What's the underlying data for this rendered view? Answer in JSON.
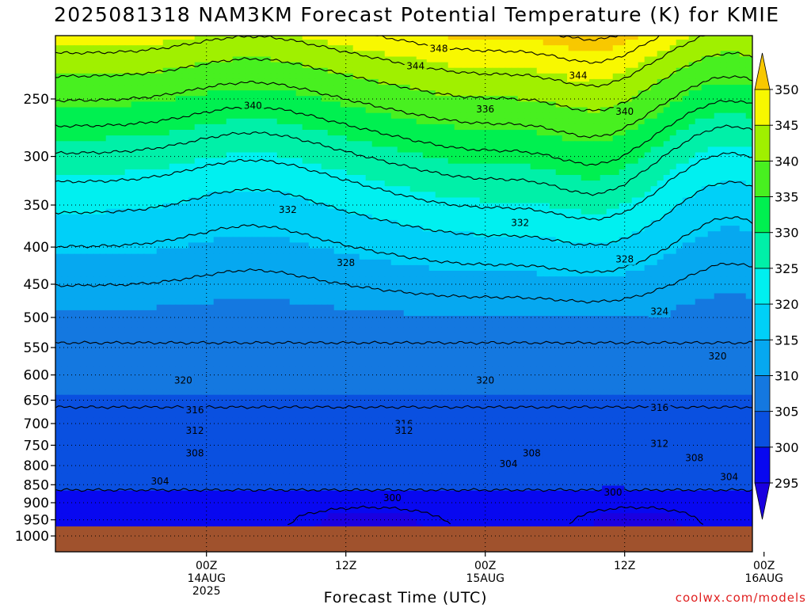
{
  "chart_data": {
    "type": "heatmap",
    "title": "2025081318 NAM3KM Forecast Potential Temperature (K) for KMIE",
    "xlabel": "Forecast Time (UTC)",
    "ylabel": "",
    "credit": "coolwx.com/models",
    "y_axis": {
      "scale": "log pressure (inverted)",
      "unit": "hPa",
      "range": [
        1000,
        200
      ],
      "ticks": [
        250,
        300,
        350,
        400,
        450,
        500,
        550,
        600,
        650,
        700,
        750,
        800,
        850,
        900,
        950,
        1000
      ]
    },
    "x_axis": {
      "range_hours_from_init": [
        -7,
        53
      ],
      "ticks": [
        {
          "hour": 6,
          "lines": [
            "00Z",
            "14AUG",
            "2025"
          ]
        },
        {
          "hour": 18,
          "lines": [
            "12Z"
          ]
        },
        {
          "hour": 30,
          "lines": [
            "00Z",
            "15AUG"
          ]
        },
        {
          "hour": 42,
          "lines": [
            "12Z"
          ]
        },
        {
          "hour": 54,
          "lines": [
            "00Z",
            "16AUG"
          ]
        }
      ]
    },
    "colorbar": {
      "unit": "K",
      "labels": [
        295,
        300,
        305,
        310,
        315,
        320,
        325,
        330,
        335,
        340,
        345,
        350
      ],
      "bins": [
        {
          "range": [
            0,
            295
          ],
          "color": "#1a00e0"
        },
        {
          "range": [
            295,
            300
          ],
          "color": "#0808f0"
        },
        {
          "range": [
            300,
            305
          ],
          "color": "#0a50e0"
        },
        {
          "range": [
            305,
            310
          ],
          "color": "#1478e0"
        },
        {
          "range": [
            310,
            315
          ],
          "color": "#06a8f0"
        },
        {
          "range": [
            315,
            320
          ],
          "color": "#00d0f8"
        },
        {
          "range": [
            320,
            325
          ],
          "color": "#00f0f0"
        },
        {
          "range": [
            325,
            330
          ],
          "color": "#00f0a8"
        },
        {
          "range": [
            330,
            335
          ],
          "color": "#00f050"
        },
        {
          "range": [
            335,
            340
          ],
          "color": "#48f020"
        },
        {
          "range": [
            340,
            345
          ],
          "color": "#a0f000"
        },
        {
          "range": [
            345,
            350
          ],
          "color": "#f8f800"
        },
        {
          "range": [
            350,
            999
          ],
          "color": "#f8c800"
        }
      ]
    },
    "contours": {
      "interval": 4,
      "labels": [
        {
          "value": 348,
          "positions": [
            [
              26,
              213
            ]
          ]
        },
        {
          "value": 344,
          "positions": [
            [
              24,
              225
            ],
            [
              38,
              232
            ]
          ]
        },
        {
          "value": 340,
          "positions": [
            [
              10,
              255
            ],
            [
              42,
              260
            ]
          ]
        },
        {
          "value": 336,
          "positions": [
            [
              30,
              258
            ]
          ]
        },
        {
          "value": 332,
          "positions": [
            [
              13,
              355
            ],
            [
              33,
              370
            ]
          ]
        },
        {
          "value": 328,
          "positions": [
            [
              18,
              420
            ],
            [
              42,
              415
            ]
          ]
        },
        {
          "value": 324,
          "positions": [
            [
              45,
              490
            ]
          ]
        },
        {
          "value": 320,
          "positions": [
            [
              4,
              610
            ],
            [
              30,
              610
            ],
            [
              50,
              565
            ]
          ]
        },
        {
          "value": 316,
          "positions": [
            [
              5,
              670
            ],
            [
              23,
              700
            ],
            [
              45,
              665
            ]
          ]
        },
        {
          "value": 312,
          "positions": [
            [
              5,
              715
            ],
            [
              23,
              715
            ],
            [
              45,
              745
            ]
          ]
        },
        {
          "value": 308,
          "positions": [
            [
              5,
              768
            ],
            [
              34,
              768
            ],
            [
              48,
              780
            ]
          ]
        },
        {
          "value": 304,
          "positions": [
            [
              2,
              840
            ],
            [
              32,
              795
            ],
            [
              51,
              828
            ]
          ]
        },
        {
          "value": 300,
          "positions": [
            [
              22,
              885
            ],
            [
              41,
              870
            ]
          ]
        }
      ]
    },
    "ground": {
      "pressure": 970,
      "color": "#a0522d"
    }
  }
}
